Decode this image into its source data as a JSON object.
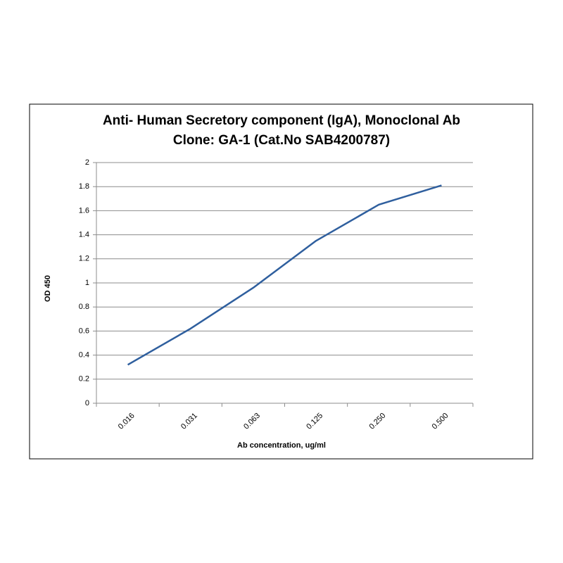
{
  "chart_data": {
    "type": "line",
    "title": [
      "Anti- Human Secretory component (IgA), Monoclonal Ab",
      "Clone: GA-1 (Cat.No SAB4200787)"
    ],
    "x_label": "Ab concentration, ug/ml",
    "y_label": "OD 450",
    "categories": [
      "0.016",
      "0.031",
      "0.063",
      "0.125",
      "0.250",
      "0.500"
    ],
    "values": [
      0.32,
      0.62,
      0.96,
      1.35,
      1.65,
      1.81
    ],
    "color": "#2f5f9e",
    "ylim": [
      0,
      2
    ],
    "yticks": [
      0,
      0.2,
      0.4,
      0.6,
      0.8,
      1,
      1.2,
      1.4,
      1.6,
      1.8,
      2
    ],
    "grid": true
  }
}
